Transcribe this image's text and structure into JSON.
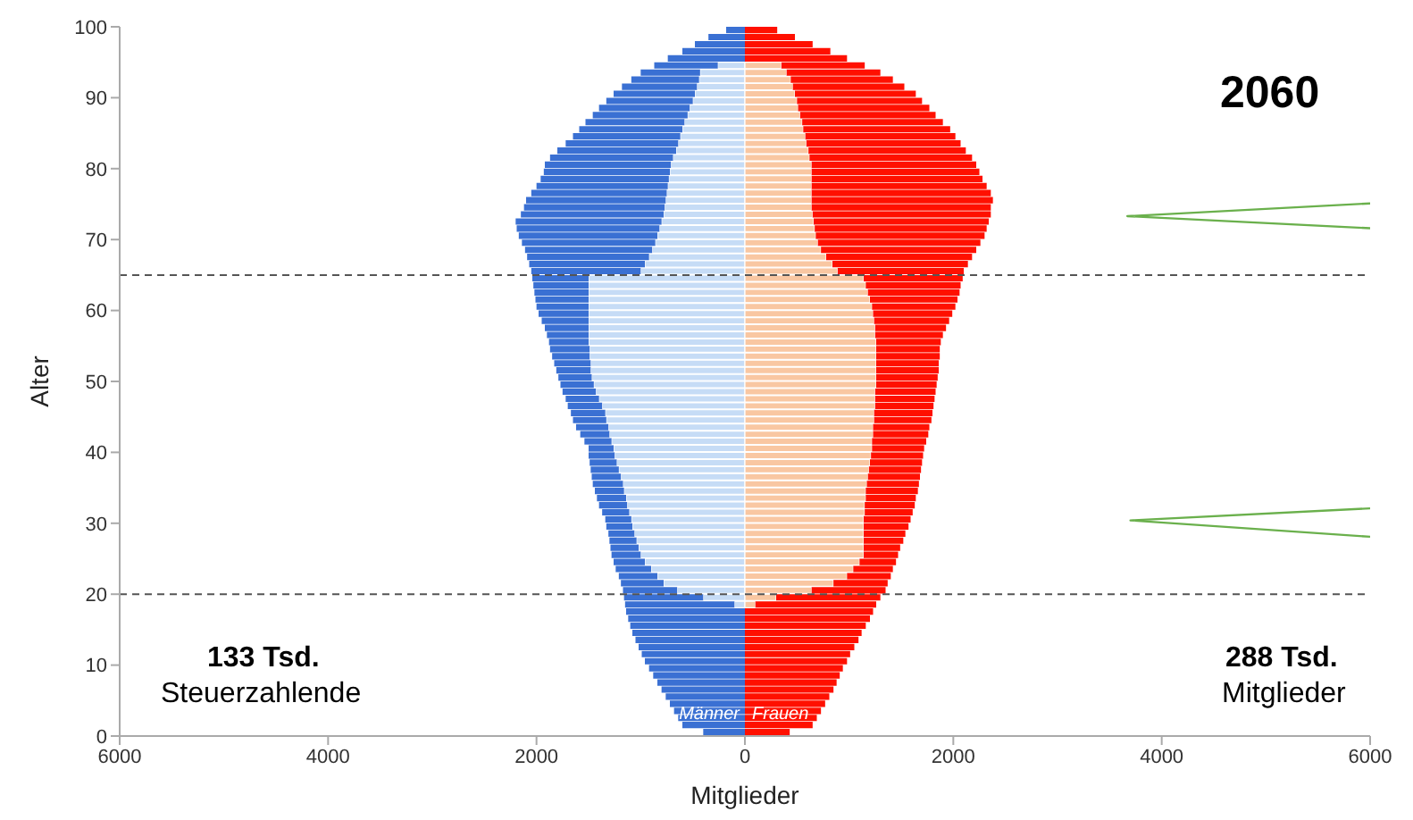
{
  "chart_data": {
    "type": "bar",
    "orientation": "horizontal",
    "stacked": true,
    "title": "2060",
    "xlabel": "Mitglieder",
    "ylabel": "Alter",
    "annotations": [
      "133 Tsd.",
      "Steuerzahlende",
      "288 Tsd.",
      "Mitglieder"
    ],
    "xlim": [
      -6000,
      6000
    ],
    "xticks": [
      {
        "value": -6000,
        "label": "6000"
      },
      {
        "value": -4000,
        "label": "4000"
      },
      {
        "value": -2000,
        "label": "2000"
      },
      0,
      2000,
      4000,
      6000
    ],
    "ylim": [
      0,
      100
    ],
    "yticks": [
      0,
      10,
      20,
      30,
      40,
      50,
      60,
      70,
      80,
      90,
      100
    ],
    "ref_lines": [
      {
        "axis": "y",
        "value": 65,
        "color": "#555555",
        "line_style": "dashed"
      },
      {
        "axis": "y",
        "value": 20,
        "color": "#555555",
        "line_style": "dashed"
      }
    ],
    "x": [
      0.5,
      1.5,
      2.5,
      3.5,
      4.5,
      5.5,
      6.5,
      7.5,
      8.5,
      9.5,
      10.5,
      11.5,
      12.5,
      13.5,
      14.5,
      15.5,
      16.5,
      17.5,
      18.5,
      19.5,
      20.5,
      21.5,
      22.5,
      23.5,
      24.5,
      25.5,
      26.5,
      27.5,
      28.5,
      29.5,
      30.5,
      31.5,
      32.5,
      33.5,
      34.5,
      35.5,
      36.5,
      37.5,
      38.5,
      39.5,
      40.5,
      41.5,
      42.5,
      43.5,
      44.5,
      45.5,
      46.5,
      47.5,
      48.5,
      49.5,
      50.5,
      51.5,
      52.5,
      53.5,
      54.5,
      55.5,
      56.5,
      57.5,
      58.5,
      59.5,
      60.5,
      61.5,
      62.5,
      63.5,
      64.5,
      65.5,
      66.5,
      67.5,
      68.5,
      69.5,
      70.5,
      71.5,
      72.5,
      73.5,
      74.5,
      75.5,
      76.5,
      77.5,
      78.5,
      79.5,
      80.5,
      81.5,
      82.5,
      83.5,
      84.5,
      85.5,
      86.5,
      87.5,
      88.5,
      89.5,
      90.5,
      91.5,
      92.5,
      93.5,
      94.5,
      95.5,
      96.5,
      97.5,
      98.5,
      99.5
    ],
    "series": [
      {
        "color": "#c6dcf6",
        "values": [
          null,
          null,
          null,
          null,
          null,
          null,
          null,
          null,
          null,
          null,
          null,
          null,
          null,
          null,
          null,
          null,
          null,
          null,
          -100,
          -400,
          -650,
          -780,
          -840,
          -900,
          -960,
          -1000,
          -1020,
          -1040,
          -1060,
          -1080,
          -1090,
          -1110,
          -1130,
          -1140,
          -1160,
          -1170,
          -1190,
          -1210,
          -1230,
          -1250,
          -1260,
          -1280,
          -1300,
          -1310,
          -1330,
          -1340,
          -1370,
          -1400,
          -1430,
          -1450,
          -1470,
          -1480,
          -1480,
          -1490,
          -1490,
          -1500,
          -1500,
          -1500,
          -1500,
          -1500,
          -1500,
          -1500,
          -1500,
          -1500,
          -1500,
          -1000,
          -960,
          -920,
          -890,
          -860,
          -840,
          -820,
          -800,
          -780,
          -770,
          -760,
          -750,
          -740,
          -730,
          -720,
          -710,
          -690,
          -660,
          -640,
          -620,
          -600,
          -580,
          -550,
          -530,
          -500,
          -480,
          -460,
          -440,
          -430,
          -260,
          null,
          null,
          null,
          null,
          null
        ]
      },
      {
        "name": "Männer",
        "color": "#3a70d3",
        "values": [
          -400,
          -600,
          -640,
          -680,
          -720,
          -760,
          -800,
          -840,
          -880,
          -920,
          -960,
          -990,
          -1020,
          -1050,
          -1080,
          -1100,
          -1120,
          -1140,
          -1050,
          -760,
          -520,
          -410,
          -370,
          -340,
          -300,
          -280,
          -270,
          -260,
          -250,
          -250,
          -250,
          -260,
          -270,
          -280,
          -280,
          -290,
          -280,
          -270,
          -260,
          -250,
          -240,
          -260,
          -280,
          -310,
          -320,
          -330,
          -330,
          -320,
          -320,
          -320,
          -320,
          -330,
          -350,
          -360,
          -380,
          -380,
          -400,
          -420,
          -450,
          -480,
          -500,
          -510,
          -520,
          -530,
          -540,
          -1050,
          -1110,
          -1170,
          -1220,
          -1280,
          -1330,
          -1370,
          -1400,
          -1370,
          -1350,
          -1340,
          -1300,
          -1260,
          -1230,
          -1210,
          -1210,
          -1180,
          -1140,
          -1080,
          -1030,
          -990,
          -950,
          -910,
          -870,
          -830,
          -780,
          -720,
          -650,
          -570,
          -610,
          -740,
          -600,
          -480,
          -350,
          -180
        ]
      },
      {
        "color": "#f9c7a2",
        "values": [
          null,
          null,
          null,
          null,
          null,
          null,
          null,
          null,
          null,
          null,
          null,
          null,
          null,
          null,
          null,
          null,
          null,
          null,
          100,
          300,
          640,
          850,
          980,
          1040,
          1100,
          1140,
          1140,
          1140,
          1140,
          1140,
          1140,
          1150,
          1150,
          1160,
          1160,
          1170,
          1180,
          1190,
          1200,
          1210,
          1220,
          1220,
          1230,
          1230,
          1240,
          1240,
          1250,
          1250,
          1250,
          1260,
          1260,
          1260,
          1260,
          1260,
          1260,
          1260,
          1250,
          1250,
          1240,
          1230,
          1220,
          1200,
          1180,
          1160,
          1140,
          890,
          840,
          780,
          730,
          700,
          680,
          670,
          660,
          650,
          640,
          640,
          640,
          640,
          640,
          640,
          640,
          620,
          610,
          590,
          580,
          560,
          550,
          530,
          510,
          500,
          480,
          460,
          440,
          400,
          350,
          null,
          null,
          null,
          null,
          null
        ]
      },
      {
        "name": "Frauen",
        "color": "#ff1000",
        "values": [
          430,
          650,
          690,
          730,
          770,
          810,
          850,
          880,
          910,
          940,
          980,
          1010,
          1050,
          1090,
          1120,
          1160,
          1200,
          1230,
          1160,
          1000,
          710,
          520,
          420,
          380,
          350,
          330,
          350,
          380,
          400,
          430,
          450,
          460,
          480,
          480,
          500,
          500,
          500,
          500,
          500,
          500,
          500,
          520,
          530,
          540,
          550,
          560,
          560,
          570,
          580,
          580,
          590,
          600,
          600,
          610,
          610,
          620,
          650,
          680,
          720,
          760,
          800,
          840,
          880,
          910,
          950,
          1210,
          1300,
          1400,
          1490,
          1560,
          1620,
          1650,
          1680,
          1710,
          1720,
          1740,
          1720,
          1680,
          1640,
          1610,
          1580,
          1560,
          1510,
          1480,
          1440,
          1410,
          1350,
          1300,
          1260,
          1200,
          1160,
          1070,
          980,
          900,
          800,
          980,
          820,
          650,
          480,
          310
        ]
      },
      {
        "type": "line",
        "color": "#6ab04c",
        "x": [
          75.1,
          73.3,
          71.6
        ],
        "values": [
          6000,
          3670,
          6000
        ]
      },
      {
        "type": "line",
        "color": "#6ab04c",
        "x": [
          32.1,
          30.4,
          28.1
        ],
        "values": [
          6000,
          3700,
          6000
        ]
      }
    ]
  }
}
